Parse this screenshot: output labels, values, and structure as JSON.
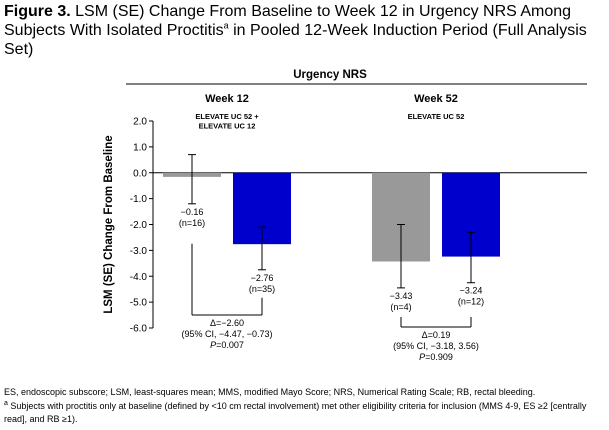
{
  "title": {
    "figure_label": "Figure 3.",
    "text_before_sup": "LSM (SE) Change From Baseline to Week 12 in Urgency NRS Among Subjects With Isolated Proctitis",
    "sup": "a",
    "text_after_sup": " in Pooled 12-Week Induction Period (Full Analysis Set)"
  },
  "footnotes": {
    "abbreviations": "ES, endoscopic subscore; LSM, least-squares mean; MMS, modified Mayo Score; NRS, Numerical Rating Scale; RB, rectal bleeding.",
    "a_marker": "a",
    "a_text": " Subjects with proctitis only at baseline (defined by <10 cm rectal involvement) met other eligibility criteria for inclusion (MMS 4-9, ES ≥2 [centrally read], and RB ≥1)."
  },
  "colors": {
    "gray_bar": "#999999",
    "blue_bar": "#0000cc",
    "axis": "#000000"
  },
  "chart_data": {
    "type": "bar",
    "header": "Urgency NRS",
    "ylabel": "LSM (SE) Change From Baseline",
    "ylim": [
      -6.0,
      2.0
    ],
    "yticks": [
      "2.0",
      "1.0",
      "0.0",
      "-1.0",
      "-2.0",
      "-3.0",
      "-4.0",
      "-5.0",
      "-6.0"
    ],
    "ytick_values": [
      2,
      1,
      0,
      -1,
      -2,
      -3,
      -4,
      -5,
      -6
    ],
    "groups": [
      {
        "title": "Week 12",
        "subtitle": [
          "ELEVATE UC 52 +",
          "ELEVATE UC 12"
        ],
        "bars": [
          {
            "color": "gray_bar",
            "value": -0.16,
            "error_low": -1.2,
            "error_high": 0.7,
            "label": [
              "−0.16",
              "(n=16)"
            ]
          },
          {
            "color": "blue_bar",
            "value": -2.76,
            "error_low": -3.75,
            "error_high": -2.1,
            "label": [
              "−2.76",
              "(n=35)"
            ]
          }
        ],
        "comparison": [
          "Δ=−2.60",
          "(95% CI, −4.47, −0.73)",
          "P=0.007"
        ]
      },
      {
        "title": "Week 52",
        "subtitle": [
          "ELEVATE UC 52"
        ],
        "bars": [
          {
            "color": "gray_bar",
            "value": -3.43,
            "error_low": -4.45,
            "error_high": -2.0,
            "label": [
              "−3.43",
              "(n=4)"
            ]
          },
          {
            "color": "blue_bar",
            "value": -3.24,
            "error_low": -4.25,
            "error_high": -2.3,
            "label": [
              "−3.24",
              "(n=12)"
            ]
          }
        ],
        "comparison": [
          "Δ=0.19",
          "(95% CI, −3.18, 3.56)",
          "P=0.909"
        ]
      }
    ]
  }
}
